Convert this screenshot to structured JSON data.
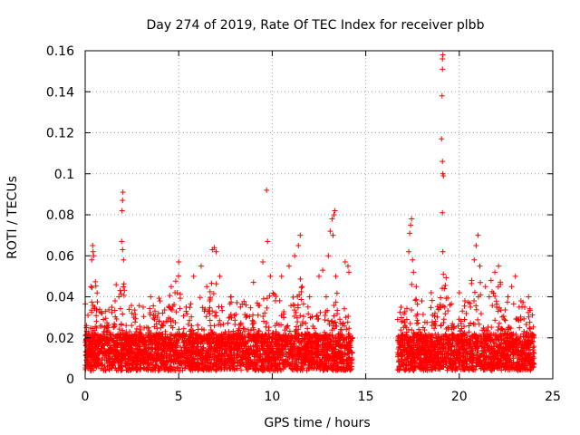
{
  "chart_data": {
    "type": "scatter",
    "title": "Day 274 of 2019, Rate Of TEC Index for receiver plbb",
    "xlabel": "GPS time / hours",
    "ylabel": "ROTI / TECUs",
    "xlim": [
      0,
      25
    ],
    "ylim": [
      0,
      0.16
    ],
    "x_ticks": [
      0,
      5,
      10,
      15,
      20,
      25
    ],
    "x_tick_labels": [
      "0",
      "5",
      "10",
      "15",
      "20",
      "25"
    ],
    "y_ticks": [
      0,
      0.02,
      0.04,
      0.06,
      0.08,
      0.1,
      0.12,
      0.14,
      0.16
    ],
    "y_tick_labels": [
      "0",
      "0.02",
      "0.04",
      "0.06",
      "0.08",
      "0.1",
      "0.12",
      "0.14",
      "0.16"
    ],
    "grid": true,
    "marker": "+",
    "marker_color": "#ff0000",
    "data_gap_hours": [
      14.3,
      16.7
    ],
    "series": [
      {
        "name": "ROTI",
        "points": [
          [
            0.15,
            0.031
          ],
          [
            0.2,
            0.022
          ],
          [
            0.3,
            0.045
          ],
          [
            0.35,
            0.058
          ],
          [
            0.4,
            0.065
          ],
          [
            0.42,
            0.062
          ],
          [
            0.45,
            0.06
          ],
          [
            0.5,
            0.035
          ],
          [
            0.6,
            0.028
          ],
          [
            0.9,
            0.032
          ],
          [
            1.2,
            0.025
          ],
          [
            1.6,
            0.038
          ],
          [
            1.8,
            0.04
          ],
          [
            1.95,
            0.067
          ],
          [
            1.97,
            0.082
          ],
          [
            2.0,
            0.087
          ],
          [
            2.02,
            0.091
          ],
          [
            2.0,
            0.063
          ],
          [
            2.05,
            0.058
          ],
          [
            2.6,
            0.03
          ],
          [
            3.1,
            0.035
          ],
          [
            3.5,
            0.04
          ],
          [
            4.0,
            0.038
          ],
          [
            4.6,
            0.045
          ],
          [
            4.8,
            0.042
          ],
          [
            5.0,
            0.057
          ],
          [
            5.4,
            0.035
          ],
          [
            5.8,
            0.05
          ],
          [
            6.2,
            0.055
          ],
          [
            6.5,
            0.045
          ],
          [
            6.8,
            0.063
          ],
          [
            6.9,
            0.064
          ],
          [
            7.0,
            0.062
          ],
          [
            7.2,
            0.05
          ],
          [
            7.8,
            0.04
          ],
          [
            8.3,
            0.035
          ],
          [
            8.6,
            0.03
          ],
          [
            9.0,
            0.047
          ],
          [
            9.2,
            0.037
          ],
          [
            9.5,
            0.057
          ],
          [
            9.7,
            0.092
          ],
          [
            9.75,
            0.067
          ],
          [
            9.9,
            0.05
          ],
          [
            10.5,
            0.05
          ],
          [
            10.9,
            0.055
          ],
          [
            11.2,
            0.06
          ],
          [
            11.4,
            0.065
          ],
          [
            11.5,
            0.07
          ],
          [
            11.6,
            0.045
          ],
          [
            12.0,
            0.04
          ],
          [
            12.5,
            0.05
          ],
          [
            12.7,
            0.053
          ],
          [
            13.0,
            0.06
          ],
          [
            13.1,
            0.072
          ],
          [
            13.2,
            0.078
          ],
          [
            13.3,
            0.08
          ],
          [
            13.35,
            0.082
          ],
          [
            13.25,
            0.07
          ],
          [
            13.4,
            0.05
          ],
          [
            13.9,
            0.057
          ],
          [
            14.05,
            0.055
          ],
          [
            14.1,
            0.052
          ],
          [
            17.3,
            0.062
          ],
          [
            17.35,
            0.071
          ],
          [
            17.4,
            0.075
          ],
          [
            17.45,
            0.078
          ],
          [
            17.5,
            0.058
          ],
          [
            17.55,
            0.052
          ],
          [
            17.7,
            0.045
          ],
          [
            18.0,
            0.038
          ],
          [
            18.5,
            0.042
          ],
          [
            18.9,
            0.034
          ],
          [
            19.1,
            0.156
          ],
          [
            19.12,
            0.158
          ],
          [
            19.1,
            0.151
          ],
          [
            19.08,
            0.138
          ],
          [
            19.05,
            0.117
          ],
          [
            19.1,
            0.106
          ],
          [
            19.12,
            0.1
          ],
          [
            19.15,
            0.099
          ],
          [
            19.1,
            0.081
          ],
          [
            19.12,
            0.062
          ],
          [
            19.15,
            0.051
          ],
          [
            19.2,
            0.044
          ],
          [
            19.5,
            0.036
          ],
          [
            20.0,
            0.042
          ],
          [
            20.3,
            0.038
          ],
          [
            20.6,
            0.035
          ],
          [
            20.8,
            0.058
          ],
          [
            20.9,
            0.065
          ],
          [
            21.0,
            0.07
          ],
          [
            21.1,
            0.055
          ],
          [
            21.4,
            0.045
          ],
          [
            21.6,
            0.04
          ],
          [
            21.7,
            0.048
          ],
          [
            21.9,
            0.052
          ],
          [
            22.1,
            0.055
          ],
          [
            22.2,
            0.046
          ],
          [
            22.6,
            0.04
          ],
          [
            22.8,
            0.045
          ],
          [
            23.0,
            0.05
          ],
          [
            23.2,
            0.035
          ],
          [
            23.5,
            0.035
          ],
          [
            23.7,
            0.04
          ]
        ],
        "baseline_segments": [
          {
            "x_range": [
              0.0,
              14.3
            ],
            "mean": 0.013,
            "spread": 0.009
          },
          {
            "x_range": [
              16.7,
              24.0
            ],
            "mean": 0.013,
            "spread": 0.009
          }
        ],
        "elevated_activity_ranges": [
          [
            0.1,
            0.7
          ],
          [
            1.5,
            2.2
          ],
          [
            4.4,
            5.2
          ],
          [
            6.6,
            7.2
          ],
          [
            9.2,
            10.2
          ],
          [
            11.0,
            11.7
          ],
          [
            12.8,
            13.5
          ],
          [
            17.2,
            17.7
          ],
          [
            18.8,
            19.4
          ],
          [
            20.6,
            21.2
          ],
          [
            21.7,
            22.3
          ]
        ]
      }
    ]
  }
}
